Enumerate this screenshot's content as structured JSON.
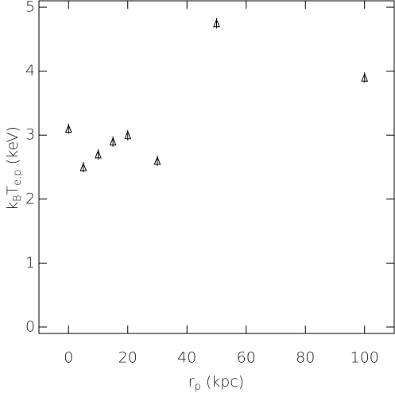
{
  "chart_data": {
    "type": "scatter",
    "xlabel": [
      "r",
      "p",
      " (kpc)"
    ],
    "ylabel": [
      "k",
      "B",
      "T",
      "e,p",
      " (keV)"
    ],
    "x": [
      0,
      5,
      10,
      15,
      20,
      30,
      50,
      100
    ],
    "values": [
      3.1,
      2.5,
      2.7,
      2.9,
      3.0,
      2.6,
      4.75,
      3.9
    ],
    "errors": [
      0.08,
      0.08,
      0.08,
      0.08,
      0.08,
      0.08,
      0.08,
      0.08
    ],
    "color": "#000000",
    "xlim": [
      -10,
      110
    ],
    "xticks": [
      0,
      20,
      40,
      60,
      80,
      100
    ],
    "ylim": [
      -0.1,
      5.1
    ],
    "yticks": [
      0,
      1,
      2,
      3,
      4,
      5
    ]
  }
}
